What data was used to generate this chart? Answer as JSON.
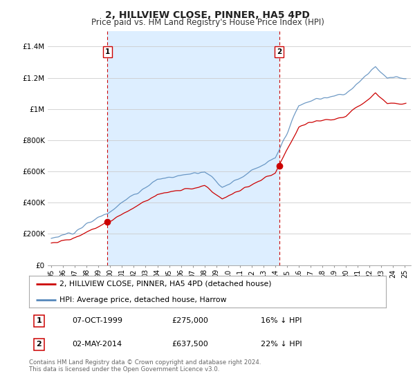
{
  "title": "2, HILLVIEW CLOSE, PINNER, HA5 4PD",
  "subtitle": "Price paid vs. HM Land Registry's House Price Index (HPI)",
  "sale1_date": "07-OCT-1999",
  "sale1_price": 275000,
  "sale1_label": "1",
  "sale1_hpi_diff": "16% ↓ HPI",
  "sale2_date": "02-MAY-2014",
  "sale2_price": 637500,
  "sale2_label": "2",
  "sale2_hpi_diff": "22% ↓ HPI",
  "legend_red": "2, HILLVIEW CLOSE, PINNER, HA5 4PD (detached house)",
  "legend_blue": "HPI: Average price, detached house, Harrow",
  "footer": "Contains HM Land Registry data © Crown copyright and database right 2024.\nThis data is licensed under the Open Government Licence v3.0.",
  "ylim": [
    0,
    1500000
  ],
  "yticks": [
    0,
    200000,
    400000,
    600000,
    800000,
    1000000,
    1200000,
    1400000
  ],
  "ytick_labels": [
    "£0",
    "£200K",
    "£400K",
    "£600K",
    "£800K",
    "£1M",
    "£1.2M",
    "£1.4M"
  ],
  "red_line_color": "#cc0000",
  "blue_line_color": "#5588bb",
  "shade_color": "#ddeeff",
  "sale1_x": 1999.77,
  "sale2_x": 2014.33,
  "vline_color": "#cc0000",
  "background_color": "#ffffff",
  "grid_color": "#cccccc"
}
